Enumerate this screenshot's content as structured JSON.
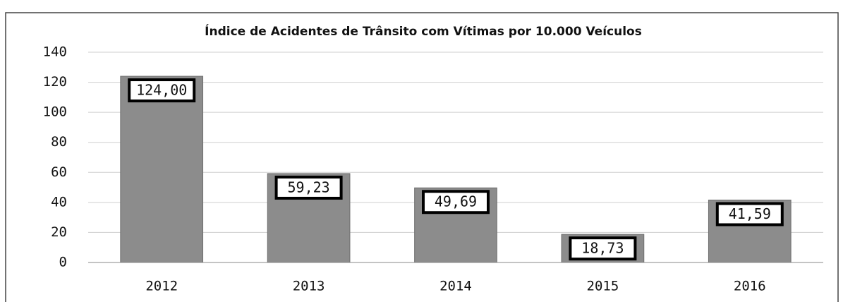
{
  "chart_data": {
    "type": "bar",
    "title": "Índice de Acidentes de Trânsito com Vítimas por 10.000 Veículos",
    "categories": [
      "2012",
      "2013",
      "2014",
      "2015",
      "2016"
    ],
    "values": [
      124,
      59.23,
      49.69,
      18.73,
      41.59
    ],
    "value_labels": [
      "124,00",
      "59,23",
      "49,69",
      "18,73",
      "41,59"
    ],
    "color": "#8c8c8c",
    "ylim": [
      0,
      140
    ],
    "yticks": [
      0,
      20,
      40,
      60,
      80,
      100,
      120,
      140
    ],
    "grid": true
  }
}
